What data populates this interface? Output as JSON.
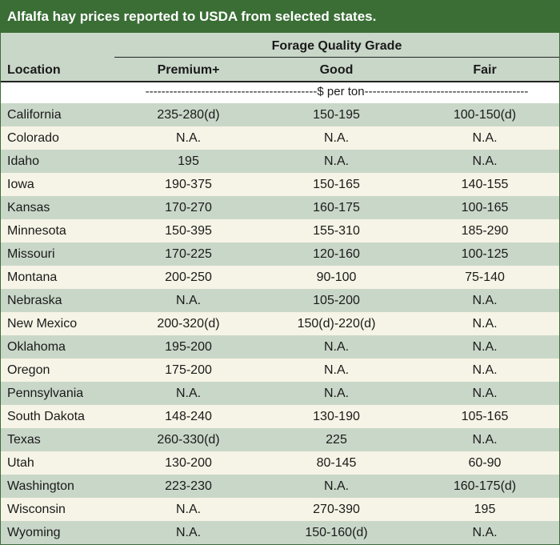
{
  "title": "Alfalfa hay prices reported to USDA from selected states.",
  "header": {
    "group": "Forage Quality Grade",
    "location": "Location",
    "premium": "Premium+",
    "good": "Good",
    "fair": "Fair"
  },
  "unit_row": "-------------------------------------------$ per ton-----------------------------------------",
  "rows": [
    {
      "location": "California",
      "premium": "235-280(d)",
      "good": "150-195",
      "fair": "100-150(d)"
    },
    {
      "location": "Colorado",
      "premium": "N.A.",
      "good": "N.A.",
      "fair": "N.A."
    },
    {
      "location": "Idaho",
      "premium": "195",
      "good": "N.A.",
      "fair": "N.A."
    },
    {
      "location": "Iowa",
      "premium": "190-375",
      "good": "150-165",
      "fair": "140-155"
    },
    {
      "location": "Kansas",
      "premium": "170-270",
      "good": "160-175",
      "fair": "100-165"
    },
    {
      "location": "Minnesota",
      "premium": "150-395",
      "good": "155-310",
      "fair": "185-290"
    },
    {
      "location": "Missouri",
      "premium": "170-225",
      "good": "120-160",
      "fair": "100-125"
    },
    {
      "location": "Montana",
      "premium": "200-250",
      "good": "90-100",
      "fair": "75-140"
    },
    {
      "location": "Nebraska",
      "premium": "N.A.",
      "good": "105-200",
      "fair": "N.A."
    },
    {
      "location": "New Mexico",
      "premium": "200-320(d)",
      "good": "150(d)-220(d)",
      "fair": "N.A."
    },
    {
      "location": "Oklahoma",
      "premium": "195-200",
      "good": "N.A.",
      "fair": "N.A."
    },
    {
      "location": "Oregon",
      "premium": "175-200",
      "good": "N.A.",
      "fair": "N.A."
    },
    {
      "location": "Pennsylvania",
      "premium": "N.A.",
      "good": "N.A.",
      "fair": "N.A."
    },
    {
      "location": "South Dakota",
      "premium": "148-240",
      "good": "130-190",
      "fair": "105-165"
    },
    {
      "location": "Texas",
      "premium": "260-330(d)",
      "good": "225",
      "fair": "N.A."
    },
    {
      "location": "Utah",
      "premium": "130-200",
      "good": "80-145",
      "fair": "60-90"
    },
    {
      "location": "Washington",
      "premium": "223-230",
      "good": "N.A.",
      "fair": "160-175(d)"
    },
    {
      "location": "Wisconsin",
      "premium": "N.A.",
      "good": "270-390",
      "fair": "195"
    },
    {
      "location": "Wyoming",
      "premium": "N.A.",
      "good": "150-160(d)",
      "fair": "N.A."
    }
  ]
}
